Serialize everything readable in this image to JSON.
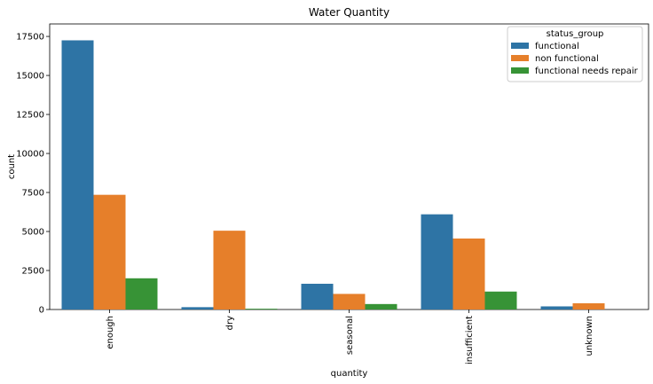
{
  "chart_data": {
    "type": "bar",
    "title": "Water Quantity",
    "xlabel": "quantity",
    "ylabel": "count",
    "categories": [
      "enough",
      "dry",
      "seasonal",
      "insufficient",
      "unknown"
    ],
    "ylim": [
      0,
      18300
    ],
    "yticks": [
      0,
      2500,
      5000,
      7500,
      10000,
      12500,
      15000,
      17500
    ],
    "ytick_labels": [
      "0",
      "2500",
      "5000",
      "7500",
      "10000",
      "12500",
      "15000",
      "17500"
    ],
    "legend": {
      "title": "status_group",
      "placement": "top-right"
    },
    "grid": false,
    "series": [
      {
        "name": "functional",
        "color": "#1f77b4",
        "values": [
          17250,
          150,
          1650,
          6100,
          200
        ]
      },
      {
        "name": "non functional",
        "color": "#ff7f0e",
        "values": [
          7350,
          5050,
          1000,
          4550,
          400
        ]
      },
      {
        "name": "functional needs repair",
        "color": "#2ca02c",
        "values": [
          2000,
          50,
          350,
          1150,
          0
        ]
      }
    ],
    "bar_fill": {
      "functional": "#2e74a5",
      "non functional": "#e67f2a",
      "functional needs repair": "#379336"
    }
  }
}
